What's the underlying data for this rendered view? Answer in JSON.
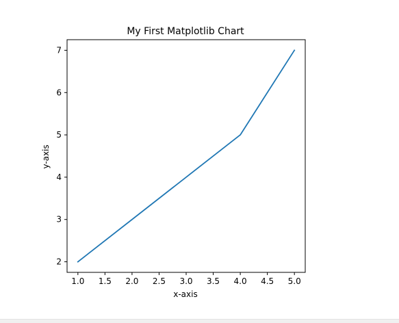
{
  "chart_data": {
    "type": "line",
    "title": "My First Matplotlib Chart",
    "xlabel": "x-axis",
    "ylabel": "y-axis",
    "x": [
      1,
      2,
      3,
      4,
      5
    ],
    "series": [
      {
        "values": [
          2,
          3,
          4,
          5,
          7
        ],
        "color": "#1f77b4"
      }
    ],
    "xlim": [
      0.8,
      5.2
    ],
    "ylim": [
      1.75,
      7.25
    ],
    "xticks": [
      1.0,
      1.5,
      2.0,
      2.5,
      3.0,
      3.5,
      4.0,
      4.5,
      5.0
    ],
    "xtick_labels": [
      "1.0",
      "1.5",
      "2.0",
      "2.5",
      "3.0",
      "3.5",
      "4.0",
      "4.5",
      "5.0"
    ],
    "yticks": [
      2,
      3,
      4,
      5,
      6,
      7
    ],
    "ytick_labels": [
      "2",
      "3",
      "4",
      "5",
      "6",
      "7"
    ],
    "grid": false,
    "legend": "none"
  }
}
